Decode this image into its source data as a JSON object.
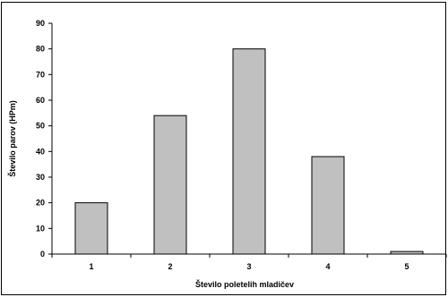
{
  "chart_data": {
    "type": "bar",
    "categories": [
      "1",
      "2",
      "3",
      "4",
      "5"
    ],
    "values": [
      20,
      54,
      80,
      38,
      1
    ],
    "title": "",
    "xlabel": "Število poletelih mladičev",
    "ylabel": "Število parov (HPm)",
    "ylim": [
      0,
      90
    ],
    "yticks": [
      "0",
      "10",
      "20",
      "30",
      "40",
      "50",
      "60",
      "70",
      "80",
      "90"
    ],
    "grid": false,
    "legend": "none",
    "colors": {
      "bar_fill": "#c0c0c0",
      "bar_stroke": "#000000",
      "axis": "#000000"
    }
  }
}
